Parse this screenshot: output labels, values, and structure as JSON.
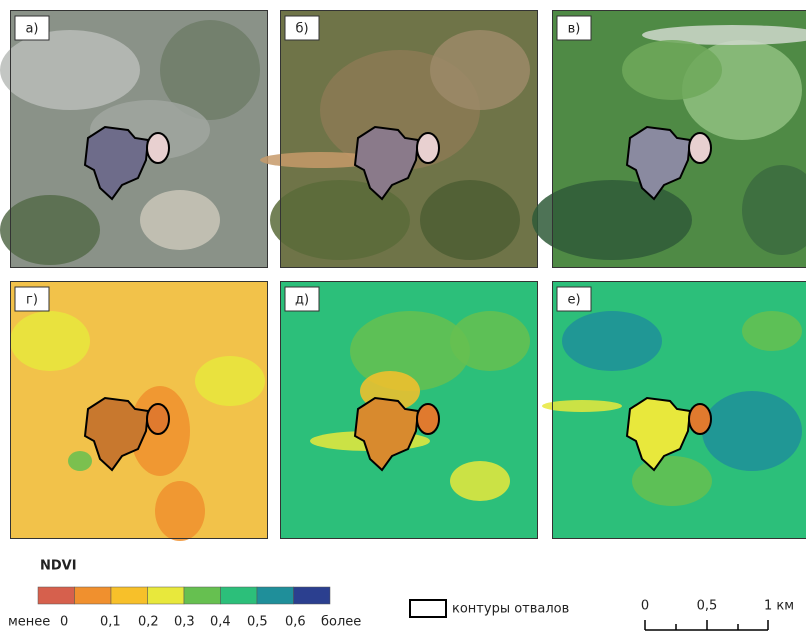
{
  "panels": [
    {
      "label": "а)"
    },
    {
      "label": "б)"
    },
    {
      "label": "в)"
    },
    {
      "label": "г)"
    },
    {
      "label": "д)"
    },
    {
      "label": "е)"
    }
  ],
  "legend": {
    "title": "NDVI",
    "colors": [
      "#d6604d",
      "#f0902e",
      "#f7c02a",
      "#e8e83c",
      "#66c050",
      "#2cbf7a",
      "#1f8f9a",
      "#2b3f8f"
    ],
    "labels": [
      "менее",
      "0",
      "0,1",
      "0,2",
      "0,3",
      "0,4",
      "0,5",
      "0,6",
      "более"
    ]
  },
  "contour_legend": {
    "label": "контуры отвалов"
  },
  "scale": {
    "labels": [
      "0",
      "0,5",
      "1 км"
    ]
  }
}
